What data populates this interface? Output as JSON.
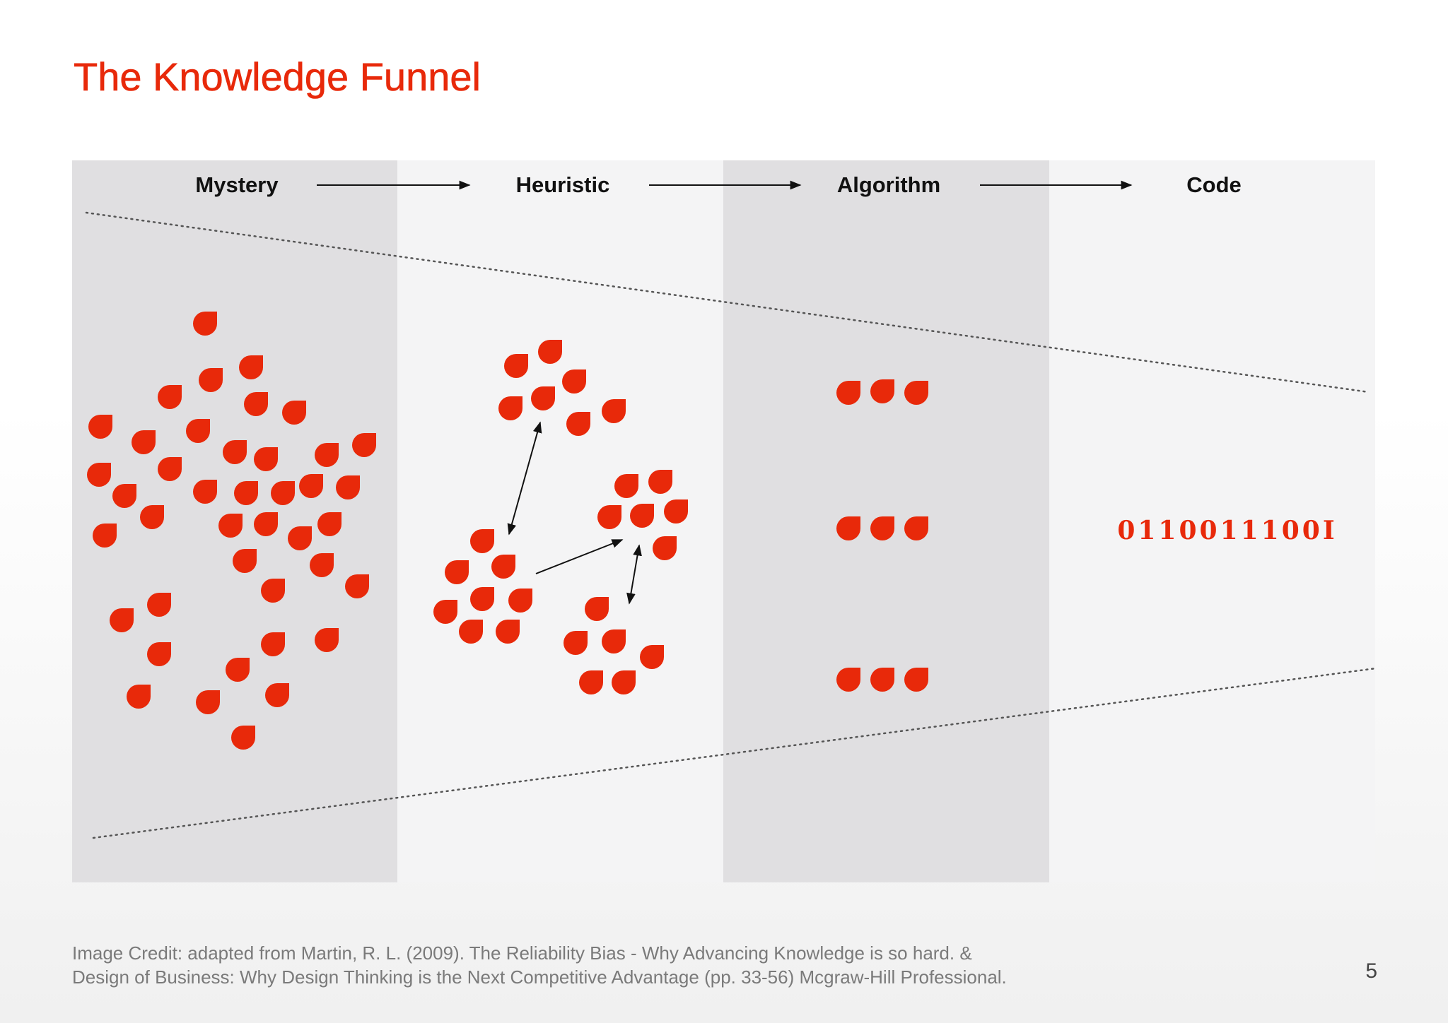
{
  "slide": {
    "title": "The Knowledge Funnel",
    "page_number": "5",
    "credit_line1": "Image Credit: adapted from Martin, R. L. (2009). The Reliability Bias - Why Advancing Knowledge is so hard. &",
    "credit_line2": "Design of Business: Why Design Thinking is the Next Competitive Advantage (pp. 33-56) Mcgraw-Hill Professional."
  },
  "stages": [
    {
      "label": "Mystery"
    },
    {
      "label": "Heuristic"
    },
    {
      "label": "Algorithm"
    },
    {
      "label": "Code"
    }
  ],
  "code_string": "0110011100I",
  "colors": {
    "accent": "#e8290a",
    "stage_dark": "#e0dfe1",
    "stage_light": "#f4f4f5",
    "text": "#111111"
  },
  "icons": {
    "drop": "drop-icon"
  }
}
